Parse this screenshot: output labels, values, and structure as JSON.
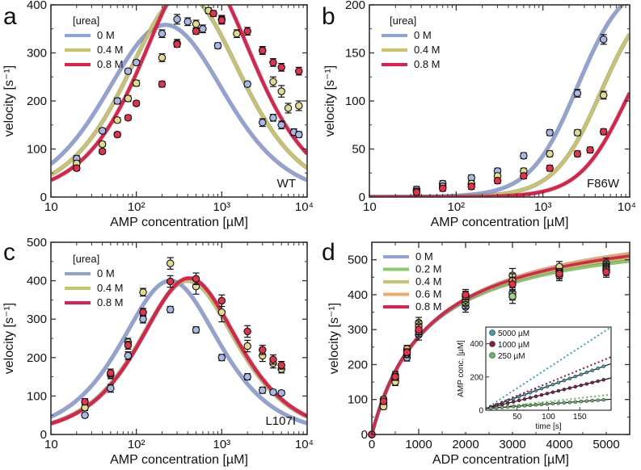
{
  "chart_data": [
    {
      "id": "a",
      "type": "scatter",
      "panel": "a",
      "corner_label": "WT",
      "xlabel": "AMP concentration [µM]",
      "ylabel": "velocity [s⁻¹]",
      "xscale": "log",
      "xlim": [
        10,
        10000
      ],
      "ylim": [
        0,
        400
      ],
      "xticks": [
        10,
        100,
        1000,
        10000
      ],
      "xtick_labels": [
        "10",
        "10²",
        "10³",
        "10⁴"
      ],
      "yticks": [
        0,
        100,
        200,
        300,
        400
      ],
      "ytick_labels": [
        "0",
        "100",
        "200",
        "300",
        "400"
      ],
      "legend": {
        "title": "[urea]",
        "placement": "top-left"
      },
      "series": [
        {
          "name": "0 M",
          "color": "#8fa3d8",
          "marker": "#a7b7e6",
          "fit": {
            "vmax": 620,
            "km": 80,
            "ki": 600
          },
          "points": [
            [
              20,
              80,
              6
            ],
            [
              40,
              138,
              5
            ],
            [
              60,
              200,
              6
            ],
            [
              80,
              262,
              5
            ],
            [
              100,
              280,
              5
            ],
            [
              200,
              340,
              8
            ],
            [
              300,
              370,
              10
            ],
            [
              400,
              365,
              8
            ],
            [
              600,
              350,
              8
            ],
            [
              900,
              315,
              6
            ],
            [
              2000,
              235,
              5
            ],
            [
              3000,
              155,
              8
            ],
            [
              4000,
              165,
              7
            ],
            [
              5000,
              150,
              8
            ],
            [
              7000,
              135,
              7
            ],
            [
              8000,
              130,
              6
            ]
          ]
        },
        {
          "name": "0.4 M",
          "color": "#c8c46a",
          "marker": "#e0dc8c",
          "fit": {
            "vmax": 790,
            "km": 160,
            "ki": 830
          },
          "points": [
            [
              20,
              70,
              5
            ],
            [
              40,
              110,
              5
            ],
            [
              60,
              160,
              5
            ],
            [
              80,
              205,
              6
            ],
            [
              100,
              237,
              6
            ],
            [
              200,
              290,
              8
            ],
            [
              300,
              320,
              8
            ],
            [
              500,
              360,
              8
            ],
            [
              700,
              388,
              6
            ],
            [
              1000,
              370,
              8
            ],
            [
              1500,
              340,
              8
            ],
            [
              3000,
              305,
              8
            ],
            [
              4000,
              240,
              10
            ],
            [
              5000,
              220,
              12
            ],
            [
              6000,
              185,
              10
            ],
            [
              8000,
              190,
              10
            ]
          ]
        },
        {
          "name": "0.8 M",
          "color": "#e0204a",
          "marker": "#e8304a",
          "fit": {
            "vmax": 950,
            "km": 260,
            "ki": 1050
          },
          "points": [
            [
              20,
              60,
              5
            ],
            [
              40,
              95,
              5
            ],
            [
              60,
              130,
              5
            ],
            [
              80,
              165,
              5
            ],
            [
              100,
              195,
              5
            ],
            [
              200,
              235,
              6
            ],
            [
              300,
              318,
              6
            ],
            [
              500,
              345,
              6
            ],
            [
              800,
              382,
              6
            ],
            [
              1000,
              368,
              8
            ],
            [
              2000,
              345,
              8
            ],
            [
              3000,
              305,
              8
            ],
            [
              4000,
              280,
              8
            ],
            [
              5000,
              270,
              8
            ],
            [
              8000,
              262,
              8
            ]
          ]
        }
      ]
    },
    {
      "id": "b",
      "type": "scatter",
      "panel": "b",
      "corner_label": "F86W",
      "xlabel": "AMP concentration [µM]",
      "ylabel": "velocity [s⁻¹]",
      "xscale": "log",
      "xlim": [
        10,
        10000
      ],
      "ylim": [
        0,
        200
      ],
      "xticks": [
        10,
        100,
        1000,
        10000
      ],
      "xtick_labels": [
        "10",
        "10²",
        "10³",
        "10⁴"
      ],
      "yticks": [
        0,
        50,
        100,
        150,
        200
      ],
      "ytick_labels": [
        "0",
        "50",
        "100",
        "150",
        "200"
      ],
      "legend": {
        "title": "[urea]",
        "placement": "top-left"
      },
      "series": [
        {
          "name": "0 M",
          "color": "#8fa3d8",
          "marker": "#a7b7e6",
          "fit": {
            "vmax": 230,
            "k": 2500,
            "n": 1.6
          },
          "points": [
            [
              35,
              8,
              3
            ],
            [
              70,
              14,
              3
            ],
            [
              150,
              20,
              3
            ],
            [
              300,
              27,
              3
            ],
            [
              600,
              43,
              3
            ],
            [
              1200,
              67,
              3
            ],
            [
              2500,
              108,
              4
            ],
            [
              5000,
              164,
              5
            ]
          ]
        },
        {
          "name": "0.4 M",
          "color": "#c8c46a",
          "marker": "#e0dc8c",
          "fit": {
            "vmax": 220,
            "k": 4700,
            "n": 1.6
          },
          "points": [
            [
              35,
              6,
              3
            ],
            [
              70,
              11,
              3
            ],
            [
              150,
              14,
              3
            ],
            [
              300,
              22,
              3
            ],
            [
              600,
              27,
              3
            ],
            [
              1200,
              45,
              3
            ],
            [
              2500,
              67,
              3
            ],
            [
              5000,
              106,
              4
            ]
          ]
        },
        {
          "name": "0.8 M",
          "color": "#e0204a",
          "marker": "#e8304a",
          "fit": {
            "vmax": 200,
            "k": 9000,
            "n": 1.6
          },
          "points": [
            [
              35,
              5,
              3
            ],
            [
              70,
              9,
              3
            ],
            [
              150,
              11,
              3
            ],
            [
              300,
              17,
              3
            ],
            [
              600,
              22,
              3
            ],
            [
              1200,
              30,
              3
            ],
            [
              2500,
              45,
              3
            ],
            [
              3500,
              49,
              3
            ],
            [
              5000,
              68,
              3
            ]
          ]
        }
      ]
    },
    {
      "id": "c",
      "type": "scatter",
      "panel": "c",
      "corner_label": "L107I",
      "xlabel": "AMP concentration [µM]",
      "ylabel": "velocity [s⁻¹]",
      "xscale": "log",
      "xlim": [
        10,
        10000
      ],
      "ylim": [
        0,
        500
      ],
      "xticks": [
        10,
        100,
        1000,
        10000
      ],
      "xtick_labels": [
        "10",
        "10²",
        "10³",
        "10⁴"
      ],
      "yticks": [
        0,
        100,
        200,
        300,
        400,
        500
      ],
      "ytick_labels": [
        "0",
        "100",
        "200",
        "300",
        "400",
        "500"
      ],
      "legend": {
        "title": "[urea]",
        "placement": "top-left"
      },
      "series": [
        {
          "name": "0 M",
          "color": "#8fa3d8",
          "marker": "#a7b7e6",
          "fit": {
            "vmax": 1200,
            "km": 250,
            "ki": 250
          },
          "points": [
            [
              25,
              50,
              6
            ],
            [
              50,
              120,
              10
            ],
            [
              80,
              205,
              10
            ],
            [
              120,
              300,
              10
            ],
            [
              250,
              325,
              8
            ],
            [
              500,
              272,
              8
            ],
            [
              1000,
              200,
              8
            ],
            [
              2000,
              150,
              8
            ],
            [
              3000,
              115,
              8
            ],
            [
              4000,
              110,
              6
            ],
            [
              5000,
              108,
              6
            ]
          ]
        },
        {
          "name": "0.4 M",
          "color": "#c8c46a",
          "marker": "#e0dc8c",
          "fit": {
            "vmax": 1200,
            "km": 400,
            "ki": 400
          },
          "points": [
            [
              25,
              70,
              8
            ],
            [
              50,
              155,
              10
            ],
            [
              80,
              240,
              10
            ],
            [
              120,
              370,
              10
            ],
            [
              250,
              445,
              15
            ],
            [
              500,
              385,
              20
            ],
            [
              1000,
              318,
              25
            ],
            [
              2000,
              230,
              15
            ],
            [
              3000,
              205,
              15
            ],
            [
              4000,
              185,
              12
            ],
            [
              5000,
              170,
              10
            ]
          ]
        },
        {
          "name": "0.8 M",
          "color": "#e0204a",
          "marker": "#e8304a",
          "fit": {
            "vmax": 1250,
            "km": 430,
            "ki": 400
          },
          "points": [
            [
              25,
              85,
              8
            ],
            [
              50,
              160,
              10
            ],
            [
              80,
              232,
              10
            ],
            [
              120,
              318,
              10
            ],
            [
              250,
              398,
              15
            ],
            [
              500,
              405,
              15
            ],
            [
              1000,
              348,
              15
            ],
            [
              2000,
              268,
              15
            ],
            [
              3000,
              220,
              12
            ],
            [
              4000,
              195,
              12
            ],
            [
              5000,
              180,
              10
            ]
          ]
        }
      ]
    },
    {
      "id": "d",
      "type": "scatter",
      "panel": "d",
      "xlabel": "ADP concentration [µM]",
      "ylabel": "velocity [s⁻¹]",
      "xscale": "linear",
      "xlim": [
        0,
        5500
      ],
      "ylim": [
        0,
        550
      ],
      "xticks": [
        0,
        1000,
        2000,
        3000,
        4000,
        5000
      ],
      "xtick_labels": [
        "0",
        "1000",
        "2000",
        "3000",
        "4000",
        "5000"
      ],
      "yticks": [
        0,
        100,
        200,
        300,
        400,
        500
      ],
      "ytick_labels": [
        "0",
        "100",
        "200",
        "300",
        "400",
        "500"
      ],
      "legend": {
        "placement": "top-left"
      },
      "series": [
        {
          "name": "0 M",
          "color": "#8fa3d8",
          "marker": "#a7b7e6",
          "fit": {
            "vmax": 630,
            "km": 1250
          },
          "points": [
            [
              0,
              0,
              3
            ],
            [
              250,
              90,
              8
            ],
            [
              500,
              155,
              10
            ],
            [
              750,
              220,
              10
            ],
            [
              1000,
              285,
              15
            ],
            [
              2000,
              365,
              15
            ],
            [
              3000,
              405,
              20
            ],
            [
              4000,
              470,
              15
            ],
            [
              5000,
              490,
              15
            ]
          ]
        },
        {
          "name": "0.2 M",
          "color": "#88cc66",
          "marker": "#9ad67a",
          "fit": {
            "vmax": 600,
            "km": 1150
          },
          "points": [
            [
              0,
              0,
              3
            ],
            [
              250,
              85,
              8
            ],
            [
              500,
              160,
              10
            ],
            [
              750,
              230,
              10
            ],
            [
              1000,
              295,
              15
            ],
            [
              2000,
              375,
              15
            ],
            [
              3000,
              395,
              20
            ],
            [
              4000,
              465,
              15
            ],
            [
              5000,
              480,
              15
            ]
          ]
        },
        {
          "name": "0.4 M",
          "color": "#c8c46a",
          "marker": "#e0dc8c",
          "fit": {
            "vmax": 615,
            "km": 1200
          },
          "points": [
            [
              0,
              0,
              3
            ],
            [
              250,
              80,
              8
            ],
            [
              500,
              150,
              10
            ],
            [
              750,
              240,
              10
            ],
            [
              1000,
              320,
              15
            ],
            [
              2000,
              385,
              15
            ],
            [
              3000,
              455,
              20
            ],
            [
              4000,
              480,
              15
            ],
            [
              5000,
              475,
              15
            ]
          ]
        },
        {
          "name": "0.6 M",
          "color": "#eeaa66",
          "marker": "#f0b070",
          "fit": {
            "vmax": 640,
            "km": 1300
          },
          "points": [
            [
              0,
              0,
              3
            ],
            [
              250,
              100,
              8
            ],
            [
              500,
              170,
              10
            ],
            [
              750,
              245,
              10
            ],
            [
              1000,
              310,
              15
            ],
            [
              2000,
              395,
              15
            ],
            [
              3000,
              440,
              20
            ],
            [
              4000,
              455,
              15
            ],
            [
              5000,
              470,
              15
            ]
          ]
        },
        {
          "name": "0.8 M",
          "color": "#e0204a",
          "marker": "#e8304a",
          "fit": {
            "vmax": 625,
            "km": 1230
          },
          "points": [
            [
              0,
              0,
              3
            ],
            [
              250,
              95,
              8
            ],
            [
              500,
              165,
              10
            ],
            [
              750,
              235,
              10
            ],
            [
              1000,
              300,
              15
            ],
            [
              2000,
              400,
              15
            ],
            [
              3000,
              430,
              20
            ],
            [
              4000,
              460,
              15
            ],
            [
              5000,
              465,
              15
            ]
          ]
        }
      ],
      "inset": {
        "xlabel": "time [s]",
        "ylabel": "AMP conc. [µM]",
        "xlim": [
          0,
          200
        ],
        "ylim": [
          0,
          500
        ],
        "xticks": [
          50,
          100,
          150
        ],
        "xtick_labels": [
          "50",
          "100",
          "150"
        ],
        "yticks": [
          0,
          200,
          400
        ],
        "ytick_labels": [
          "0",
          "200",
          "400"
        ],
        "series": [
          {
            "name": "5000 µM",
            "color": "#3aa0b8",
            "slope": 1.35,
            "slope_dotted": 2.45
          },
          {
            "name": "1000 µM",
            "color": "#8a1a4a",
            "slope": 0.92,
            "slope_dotted": 1.55
          },
          {
            "name": "250 µM",
            "color": "#66b866",
            "slope": 0.28,
            "slope_dotted": 0.42
          }
        ]
      }
    }
  ]
}
